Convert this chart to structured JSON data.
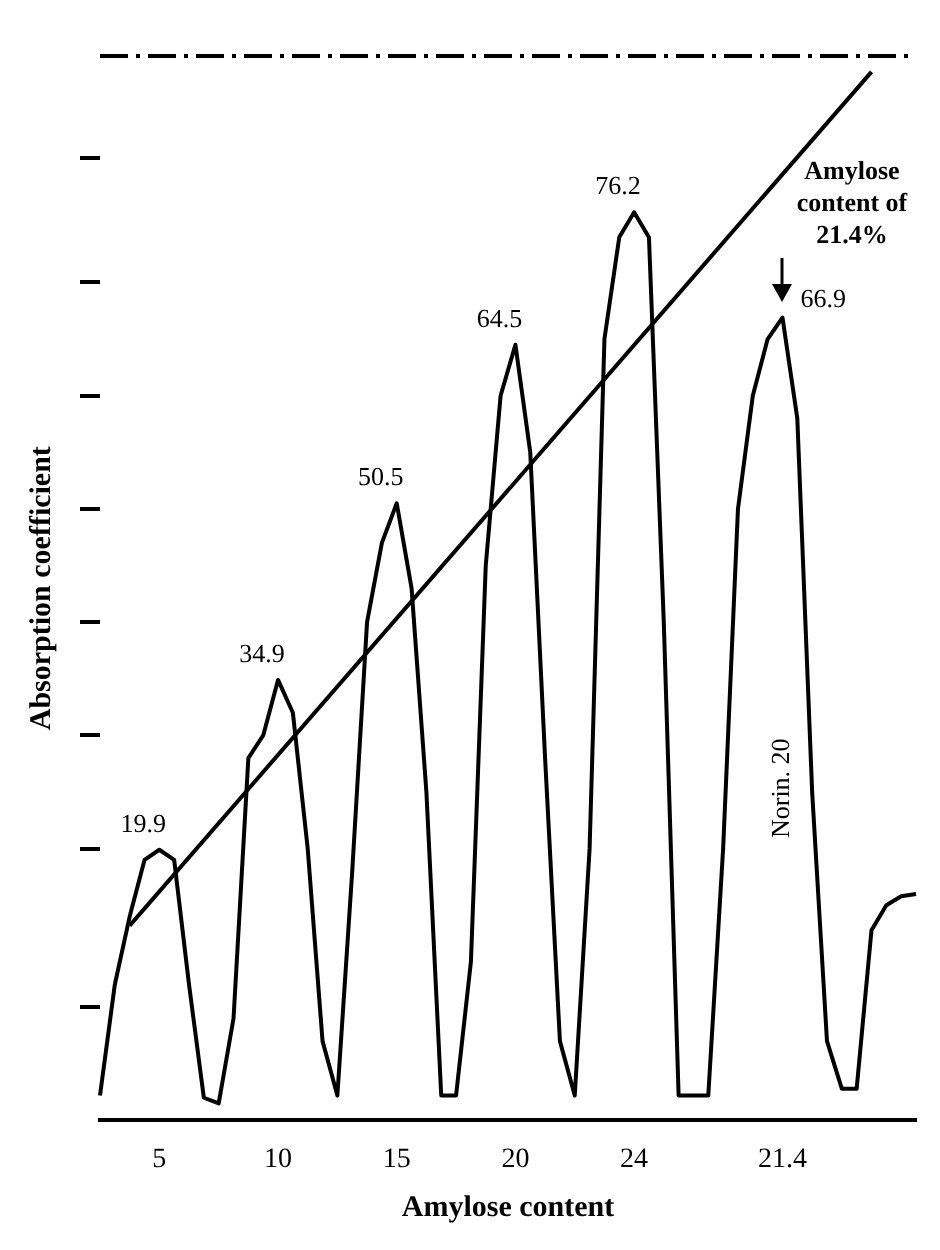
{
  "chart_data": {
    "type": "line",
    "xlabel": "Amylose content",
    "ylabel": "Absorption coefficient",
    "categories": [
      null,
      null,
      null,
      null,
      "5",
      null,
      null,
      null,
      null,
      null,
      null,
      null,
      "10",
      null,
      null,
      null,
      null,
      null,
      null,
      null,
      "15",
      null,
      null,
      null,
      null,
      null,
      null,
      null,
      "20",
      null,
      null,
      null,
      null,
      null,
      null,
      null,
      "24",
      null,
      null,
      null,
      null,
      null,
      null,
      null,
      null,
      null,
      "21.4",
      null,
      null,
      null,
      null,
      null,
      null,
      null,
      null,
      null
    ],
    "ylim": [
      -4,
      90
    ],
    "yticks": [
      {
        "value": 6,
        "label": null
      },
      {
        "value": 20,
        "label": null
      },
      {
        "value": 30,
        "label": null
      },
      {
        "value": 40,
        "label": null
      },
      {
        "value": 50,
        "label": null
      },
      {
        "value": 60,
        "label": null
      },
      {
        "value": 70,
        "label": null
      },
      {
        "value": 81,
        "label": null
      }
    ],
    "marker": "none",
    "line_style": "solid",
    "series": [
      {
        "color": "#000000",
        "values": [
          -1.8,
          8,
          14,
          19,
          19.9,
          19,
          8,
          -2,
          -2.5,
          5,
          28,
          30,
          34.9,
          32,
          20,
          3,
          -1.8,
          18,
          40,
          47,
          50.5,
          43,
          25,
          -1.8,
          -1.8,
          10,
          45,
          60,
          64.5,
          55,
          28,
          3,
          -1.8,
          20,
          65,
          74,
          76.2,
          74,
          40,
          -1.8,
          -1.8,
          -1.8,
          20,
          50,
          60,
          65,
          66.9,
          58,
          25,
          3,
          -1.2,
          -1.2,
          12.8,
          15,
          15.8,
          16
        ],
        "value_labels": [
          null,
          null,
          null,
          null,
          "19.9",
          null,
          null,
          null,
          null,
          null,
          null,
          null,
          "34.9",
          null,
          null,
          null,
          null,
          null,
          null,
          null,
          "50.5",
          null,
          null,
          null,
          null,
          null,
          null,
          null,
          "64.5",
          null,
          null,
          null,
          null,
          null,
          null,
          null,
          "76.2",
          null,
          null,
          null,
          null,
          null,
          null,
          null,
          null,
          null,
          "66.9",
          null,
          null,
          null,
          null,
          null,
          null,
          null,
          null,
          null
        ]
      },
      {
        "type": "line",
        "color": "#000000",
        "values": [
          null,
          null,
          13.2,
          null,
          null,
          null,
          null,
          null,
          null,
          null,
          null,
          null,
          null,
          null,
          null,
          null,
          null,
          null,
          null,
          null,
          null,
          null,
          null,
          null,
          null,
          null,
          null,
          null,
          null,
          null,
          null,
          null,
          null,
          null,
          null,
          null,
          null,
          null,
          null,
          null,
          null,
          null,
          null,
          null,
          null,
          null,
          null,
          null,
          null,
          null,
          null,
          null,
          88.6,
          null,
          null,
          null
        ]
      }
    ],
    "annotations": [
      {
        "text": "Amylose content of 21.4%",
        "x": "21.4",
        "y": 66.9
      },
      "Norin. 20"
    ]
  }
}
